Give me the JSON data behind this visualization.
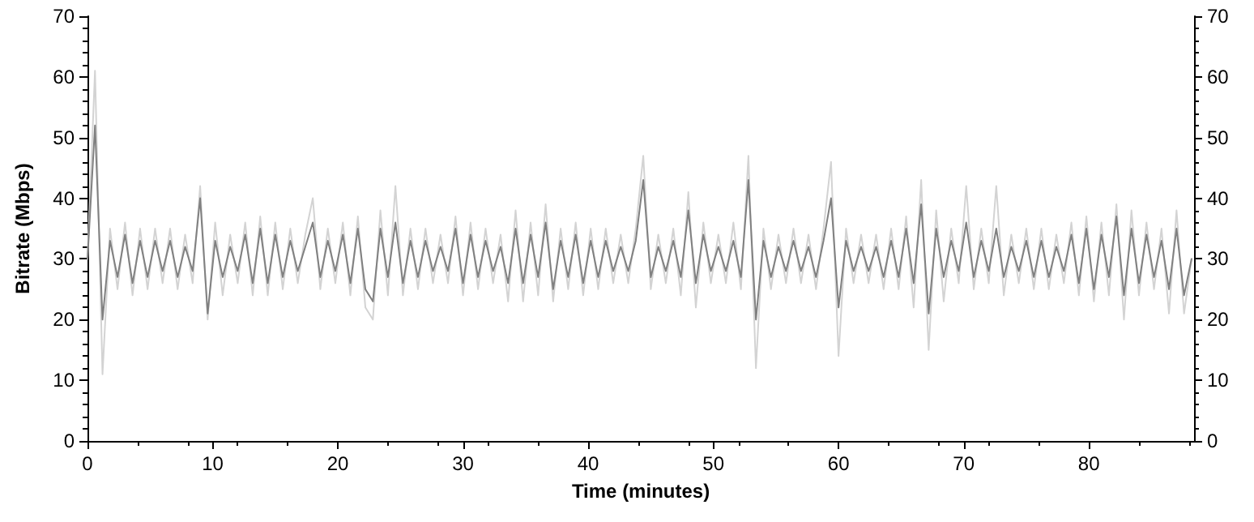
{
  "chart_data": {
    "type": "line",
    "xlabel": "Time (minutes)",
    "ylabel": "Bitrate (Mbps)",
    "marker": "none",
    "line_style": "solid",
    "x": [
      0,
      0.6,
      1.2,
      1.8,
      2.4,
      3,
      3.6,
      4.2,
      4.8,
      5.4,
      6,
      6.6,
      7.2,
      7.8,
      8.4,
      9,
      9.6,
      10.2,
      10.8,
      11.4,
      12,
      12.6,
      13.2,
      13.8,
      14.4,
      15,
      15.6,
      16.2,
      16.8,
      17.4,
      18,
      18.6,
      19.2,
      19.8,
      20.4,
      21,
      21.6,
      22.2,
      22.8,
      23.4,
      24,
      24.6,
      25.2,
      25.8,
      26.4,
      27,
      27.6,
      28.2,
      28.8,
      29.4,
      30,
      30.6,
      31.2,
      31.8,
      32.4,
      33,
      33.6,
      34.2,
      34.8,
      35.4,
      36,
      36.6,
      37.2,
      37.8,
      38.4,
      39,
      39.6,
      40.2,
      40.8,
      41.4,
      42,
      42.6,
      43.2,
      43.8,
      44.4,
      45,
      45.6,
      46.2,
      46.8,
      47.4,
      48,
      48.6,
      49.2,
      49.8,
      50.4,
      51,
      51.6,
      52.2,
      52.8,
      53.4,
      54,
      54.6,
      55.2,
      55.8,
      56.4,
      57,
      57.6,
      58.2,
      58.8,
      59.4,
      60,
      60.6,
      61.2,
      61.8,
      62.4,
      63,
      63.6,
      64.2,
      64.8,
      65.4,
      66,
      66.6,
      67.2,
      67.8,
      68.4,
      69,
      69.6,
      70.2,
      70.8,
      71.4,
      72,
      72.6,
      73.2,
      73.8,
      74.4,
      75,
      75.6,
      76.2,
      76.8,
      77.4,
      78,
      78.6,
      79.2,
      79.8,
      80.4,
      81,
      81.6,
      82.2,
      82.8,
      83.4,
      84,
      84.6,
      85.2,
      85.8,
      86.4,
      87,
      87.6,
      88.2
    ],
    "series": [
      {
        "color": "#d3d3d3",
        "values": [
          30,
          61,
          11,
          35,
          25,
          36,
          24,
          35,
          25,
          35,
          26,
          35,
          25,
          34,
          26,
          42,
          20,
          36,
          24,
          34,
          26,
          36,
          24,
          37,
          24,
          36,
          25,
          35,
          26,
          34,
          40,
          25,
          35,
          26,
          36,
          24,
          37,
          22,
          20,
          38,
          24,
          42,
          24,
          35,
          25,
          35,
          26,
          34,
          26,
          37,
          24,
          36,
          25,
          35,
          26,
          34,
          23,
          38,
          23,
          36,
          24,
          39,
          23,
          35,
          25,
          36,
          24,
          35,
          25,
          35,
          26,
          34,
          26,
          35,
          47,
          25,
          34,
          26,
          35,
          24,
          41,
          22,
          36,
          26,
          34,
          26,
          36,
          25,
          47,
          12,
          35,
          25,
          34,
          26,
          35,
          26,
          34,
          25,
          35,
          46,
          14,
          35,
          26,
          34,
          26,
          34,
          25,
          35,
          25,
          37,
          22,
          43,
          15,
          38,
          23,
          35,
          26,
          42,
          25,
          35,
          26,
          42,
          24,
          34,
          26,
          35,
          25,
          35,
          25,
          34,
          26,
          36,
          24,
          37,
          23,
          36,
          24,
          39,
          20,
          38,
          24,
          36,
          25,
          35,
          21,
          38,
          21,
          30
        ]
      },
      {
        "color": "#808080",
        "values": [
          30,
          52,
          20,
          33,
          27,
          34,
          26,
          33,
          27,
          33,
          28,
          33,
          27,
          32,
          28,
          40,
          21,
          33,
          27,
          32,
          28,
          34,
          26,
          35,
          26,
          34,
          27,
          33,
          28,
          32,
          36,
          27,
          33,
          28,
          34,
          26,
          35,
          25,
          23,
          35,
          27,
          36,
          26,
          33,
          27,
          33,
          28,
          32,
          28,
          35,
          26,
          34,
          27,
          33,
          28,
          32,
          26,
          35,
          26,
          34,
          27,
          36,
          25,
          33,
          27,
          34,
          26,
          33,
          27,
          33,
          28,
          32,
          28,
          33,
          43,
          27,
          32,
          28,
          33,
          27,
          38,
          26,
          34,
          28,
          32,
          28,
          33,
          27,
          43,
          20,
          33,
          27,
          32,
          28,
          33,
          28,
          32,
          27,
          33,
          40,
          22,
          33,
          28,
          32,
          28,
          32,
          27,
          33,
          27,
          35,
          26,
          39,
          21,
          35,
          27,
          33,
          28,
          36,
          27,
          33,
          28,
          35,
          27,
          32,
          28,
          33,
          27,
          33,
          27,
          32,
          28,
          34,
          26,
          35,
          25,
          34,
          27,
          37,
          24,
          35,
          26,
          34,
          27,
          33,
          25,
          35,
          24,
          30
        ]
      }
    ],
    "xlim": [
      0,
      88.4
    ],
    "xticks": [
      0,
      10,
      20,
      30,
      40,
      50,
      60,
      70,
      80
    ],
    "ylim": [
      0,
      70
    ],
    "yticks": [
      0,
      10,
      20,
      30,
      40,
      50,
      60,
      70
    ],
    "y2lim": [
      0,
      70
    ],
    "y2ticks": [
      0,
      10,
      20,
      30,
      40,
      50,
      60,
      70
    ]
  }
}
